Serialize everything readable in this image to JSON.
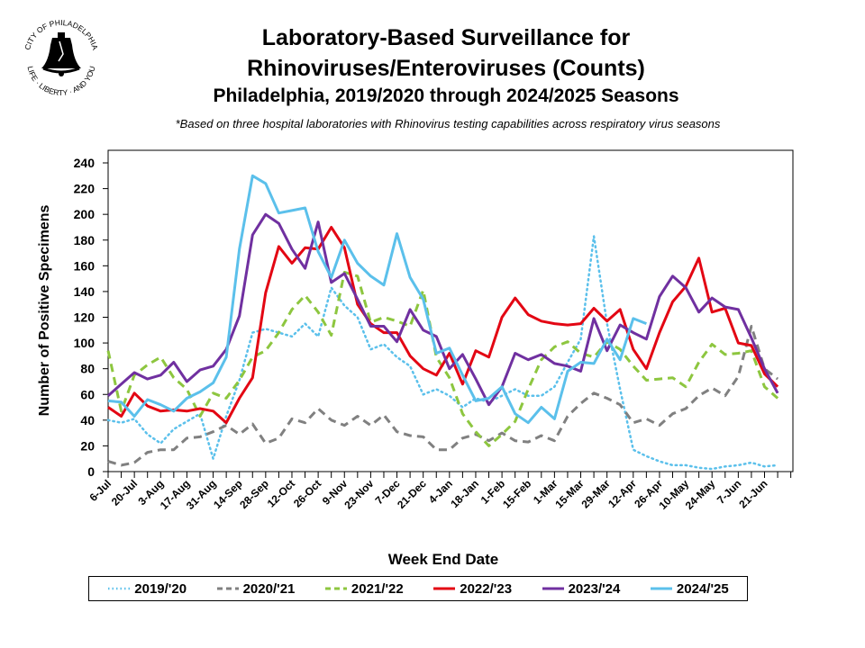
{
  "logo": {
    "text_top": "CITY OF PHILADELPHIA",
    "text_bottom": "LIFE · LIBERTY · AND YOU"
  },
  "chart_data": {
    "type": "line",
    "title": "Laboratory-Based Surveillance for",
    "title_line2": "Rhinoviruses/Enteroviruses (Counts)",
    "subtitle": "Philadelphia, 2019/2020 through 2024/2025 Seasons",
    "note": "*Based on three hospital laboratories with Rhinovirus testing capabilities across respiratory virus seasons",
    "xlabel": "Week End Date",
    "ylabel": "Number of Positive Specimens",
    "ylim": [
      0,
      240
    ],
    "yticks": [
      "0",
      "20",
      "40",
      "60",
      "80",
      "100",
      "120",
      "140",
      "160",
      "180",
      "200",
      "220",
      "240"
    ],
    "xtick_labels": [
      "6-Jul",
      "20-Jul",
      "3-Aug",
      "17-Aug",
      "31-Aug",
      "14-Sep",
      "28-Sep",
      "12-Oct",
      "26-Oct",
      "9-Nov",
      "23-Nov",
      "7-Dec",
      "21-Dec",
      "4-Jan",
      "18-Jan",
      "1-Feb",
      "15-Feb",
      "1-Mar",
      "15-Mar",
      "29-Mar",
      "12-Apr",
      "26-Apr",
      "10-May",
      "24-May",
      "7-Jun",
      "21-Jun"
    ],
    "num_weeks": 52,
    "legend_position": "bottom",
    "series": [
      {
        "name": "2019/'20",
        "color": "#5BC0EB",
        "style": "dotted",
        "values": [
          40,
          38,
          41,
          29,
          22,
          33,
          39,
          45,
          10,
          43,
          71,
          108,
          111,
          108,
          105,
          115,
          105,
          143,
          129,
          120,
          95,
          99,
          89,
          82,
          60,
          64,
          59,
          50,
          57,
          54,
          59,
          64,
          59,
          59,
          66,
          85,
          103,
          183,
          115,
          64,
          17,
          12,
          8,
          5,
          5,
          3,
          2,
          4,
          5,
          7,
          4,
          5
        ]
      },
      {
        "name": "2020/'21",
        "color": "#808080",
        "style": "dashed",
        "values": [
          8,
          5,
          7,
          15,
          17,
          17,
          26,
          27,
          31,
          36,
          29,
          37,
          22,
          26,
          41,
          38,
          49,
          40,
          36,
          43,
          36,
          44,
          31,
          28,
          27,
          17,
          17,
          26,
          29,
          24,
          30,
          24,
          23,
          28,
          24,
          43,
          53,
          61,
          57,
          52,
          38,
          41,
          36,
          45,
          49,
          59,
          65,
          59,
          74,
          113,
          80,
          72
        ]
      },
      {
        "name": "2021/'22",
        "color": "#8DC63F",
        "style": "dashed",
        "values": [
          94,
          47,
          75,
          83,
          89,
          73,
          64,
          43,
          61,
          57,
          71,
          89,
          94,
          108,
          126,
          137,
          124,
          106,
          155,
          152,
          116,
          120,
          117,
          113,
          141,
          89,
          73,
          45,
          31,
          20,
          29,
          39,
          64,
          87,
          97,
          101,
          92,
          89,
          101,
          95,
          82,
          71,
          72,
          73,
          66,
          85,
          99,
          91,
          92,
          94,
          66,
          57
        ]
      },
      {
        "name": "2022/'23",
        "color": "#E30613",
        "style": "solid",
        "values": [
          50,
          43,
          61,
          51,
          47,
          48,
          47,
          49,
          47,
          38,
          57,
          73,
          139,
          175,
          162,
          174,
          173,
          190,
          174,
          130,
          115,
          108,
          108,
          90,
          80,
          75,
          92,
          68,
          94,
          89,
          120,
          135,
          122,
          117,
          115,
          114,
          115,
          127,
          117,
          126,
          95,
          80,
          108,
          132,
          144,
          166,
          124,
          127,
          100,
          98,
          76,
          66
        ]
      },
      {
        "name": "2023/'24",
        "color": "#7030A0",
        "style": "solid",
        "values": [
          59,
          68,
          77,
          72,
          75,
          85,
          70,
          79,
          82,
          95,
          121,
          184,
          200,
          193,
          173,
          158,
          194,
          147,
          154,
          134,
          113,
          113,
          101,
          126,
          110,
          105,
          80,
          91,
          72,
          52,
          66,
          92,
          87,
          91,
          84,
          82,
          78,
          119,
          94,
          114,
          108,
          103,
          136,
          152,
          143,
          124,
          135,
          128,
          126,
          104,
          80,
          61
        ]
      },
      {
        "name": "2024/'25",
        "color": "#5BC0EB",
        "style": "solid",
        "values": [
          55,
          54,
          43,
          56,
          52,
          47,
          57,
          62,
          69,
          89,
          173,
          230,
          224,
          201,
          203,
          205,
          171,
          151,
          180,
          162,
          152,
          145,
          185,
          151,
          134,
          92,
          96,
          75,
          55,
          57,
          66,
          45,
          38,
          50,
          41,
          78,
          85,
          84,
          103,
          87,
          119,
          115
        ]
      }
    ]
  }
}
